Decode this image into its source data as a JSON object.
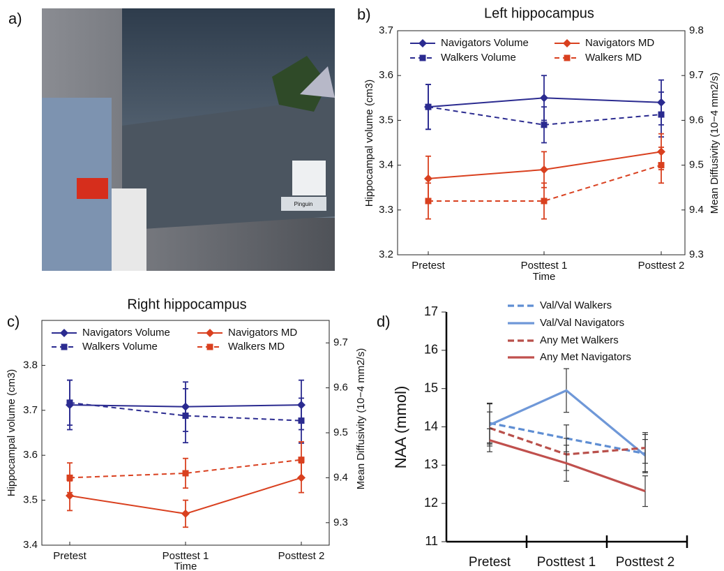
{
  "panel_a": {
    "panel": "a)",
    "screen_label": "Pinguin"
  },
  "chart_data": [
    {
      "type": "line",
      "panel": "b)",
      "title": "Left hippocampus",
      "x_label": "Time",
      "y_label": "Hippocampal volume (cm3)",
      "y2_label": "Mean Diffusivity (10−4 mm2/s)",
      "categories": [
        "Pretest",
        "Posttest 1",
        "Posttest 2"
      ],
      "ylim": [
        3.2,
        3.7
      ],
      "yticks": [
        3.2,
        3.3,
        3.4,
        3.5,
        3.6,
        3.7
      ],
      "y2lim": [
        9.3,
        9.8
      ],
      "y2ticks": [
        9.3,
        9.4,
        9.5,
        9.6,
        9.7,
        9.8
      ],
      "series": [
        {
          "name": "Navigators Volume",
          "color": "#2b2b90",
          "dashed": false,
          "marker": "diamond",
          "values": [
            3.53,
            3.55,
            3.54
          ],
          "errors": [
            0.05,
            0.05,
            0.05
          ]
        },
        {
          "name": "Walkers Volume",
          "color": "#2b2b90",
          "dashed": true,
          "marker": "square",
          "values": [
            3.53,
            3.49,
            3.513
          ],
          "errors": [
            0.05,
            0.04,
            0.05
          ]
        },
        {
          "name": "Navigators MD",
          "color": "#d9401f",
          "dashed": false,
          "marker": "diamond",
          "axis": "y2",
          "values": [
            9.47,
            9.49,
            9.53
          ],
          "errors": [
            0.05,
            0.04,
            0.04
          ]
        },
        {
          "name": "Walkers MD",
          "color": "#d9401f",
          "dashed": true,
          "marker": "square",
          "axis": "y2",
          "values": [
            9.42,
            9.42,
            9.5
          ],
          "errors": [
            0.04,
            0.04,
            0.04
          ]
        }
      ]
    },
    {
      "type": "line",
      "panel": "c)",
      "title": "Right hippocampus",
      "x_label": "Time",
      "y_label": "Hippocampal volume (cm3)",
      "y2_label": "Mean Diffusivity (10−4 mm2/s)",
      "categories": [
        "Pretest",
        "Posttest 1",
        "Posttest 2"
      ],
      "ylim": [
        3.4,
        3.9
      ],
      "yticks": [
        3.4,
        3.5,
        3.6,
        3.7,
        3.8
      ],
      "y2lim": [
        9.25,
        9.75
      ],
      "y2ticks": [
        9.3,
        9.4,
        9.5,
        9.6,
        9.7
      ],
      "series": [
        {
          "name": "Navigators Volume",
          "color": "#2b2b90",
          "dashed": false,
          "marker": "diamond",
          "values": [
            3.712,
            3.708,
            3.712
          ],
          "errors": [
            0.055,
            0.055,
            0.055
          ]
        },
        {
          "name": "Walkers Volume",
          "color": "#2b2b90",
          "dashed": true,
          "marker": "square",
          "values": [
            3.717,
            3.688,
            3.677
          ],
          "errors": [
            0.05,
            0.06,
            0.05
          ]
        },
        {
          "name": "Navigators MD",
          "color": "#d9401f",
          "dashed": false,
          "marker": "diamond",
          "axis": "y2",
          "values": [
            9.36,
            9.32,
            9.4
          ],
          "errors": [
            0.033,
            0.03,
            0.033
          ]
        },
        {
          "name": "Walkers MD",
          "color": "#d9401f",
          "dashed": true,
          "marker": "square",
          "axis": "y2",
          "values": [
            9.4,
            9.41,
            9.44
          ],
          "errors": [
            0.033,
            0.033,
            0.04
          ]
        }
      ]
    },
    {
      "type": "line",
      "panel": "d)",
      "y_label": "NAA (mmol)",
      "categories": [
        "Pretest",
        "Posttest 1",
        "Posttest 2"
      ],
      "ylim": [
        11,
        17
      ],
      "yticks": [
        11,
        12,
        13,
        14,
        15,
        16,
        17
      ],
      "series": [
        {
          "name": "Val/Val Walkers",
          "color": "#5f8ed3",
          "dashed": true,
          "values": [
            14.1,
            13.7,
            13.3
          ],
          "errors": [
            0.52,
            0.35,
            0.5
          ]
        },
        {
          "name": "Val/Val Navigators",
          "color": "#6f98d8",
          "dashed": false,
          "values": [
            14.05,
            14.95,
            13.25
          ],
          "errors": [
            0.55,
            0.57,
            0.42
          ]
        },
        {
          "name": "Any Met Walkers",
          "color": "#b9504b",
          "dashed": true,
          "values": [
            13.97,
            13.28,
            13.45
          ],
          "errors": [
            0.42,
            0.42,
            0.4
          ]
        },
        {
          "name": "Any Met Navigators",
          "color": "#c0504d",
          "dashed": false,
          "values": [
            13.65,
            13.05,
            12.32
          ],
          "errors": [
            0.3,
            0.47,
            0.4
          ]
        }
      ]
    }
  ]
}
